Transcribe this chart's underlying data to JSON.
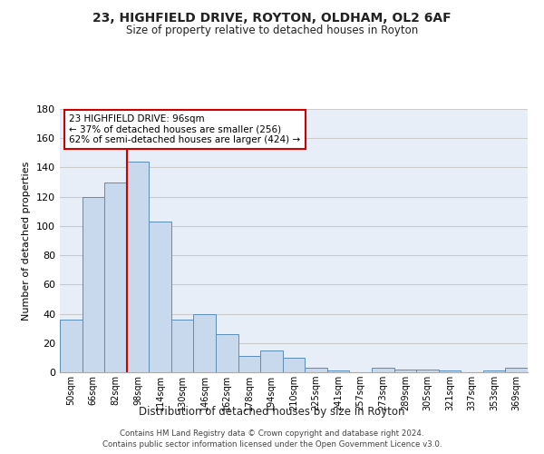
{
  "title": "23, HIGHFIELD DRIVE, ROYTON, OLDHAM, OL2 6AF",
  "subtitle": "Size of property relative to detached houses in Royton",
  "xlabel": "Distribution of detached houses by size in Royton",
  "ylabel": "Number of detached properties",
  "bin_labels": [
    "50sqm",
    "66sqm",
    "82sqm",
    "98sqm",
    "114sqm",
    "130sqm",
    "146sqm",
    "162sqm",
    "178sqm",
    "194sqm",
    "210sqm",
    "225sqm",
    "241sqm",
    "257sqm",
    "273sqm",
    "289sqm",
    "305sqm",
    "321sqm",
    "337sqm",
    "353sqm",
    "369sqm"
  ],
  "bar_values": [
    36,
    120,
    130,
    144,
    103,
    36,
    40,
    26,
    11,
    15,
    10,
    3,
    1,
    0,
    3,
    2,
    2,
    1,
    0,
    1,
    3
  ],
  "bar_color": "#c9d9ed",
  "bar_edge_color": "#5b8db8",
  "grid_color": "#cccccc",
  "bg_color": "#e8eef8",
  "vline_color": "#cc0000",
  "annotation_title": "23 HIGHFIELD DRIVE: 96sqm",
  "annotation_line1": "← 37% of detached houses are smaller (256)",
  "annotation_line2": "62% of semi-detached houses are larger (424) →",
  "annotation_box_color": "#ffffff",
  "annotation_box_edge_color": "#cc0000",
  "footer_line1": "Contains HM Land Registry data © Crown copyright and database right 2024.",
  "footer_line2": "Contains public sector information licensed under the Open Government Licence v3.0.",
  "ylim": [
    0,
    180
  ],
  "yticks": [
    0,
    20,
    40,
    60,
    80,
    100,
    120,
    140,
    160,
    180
  ]
}
